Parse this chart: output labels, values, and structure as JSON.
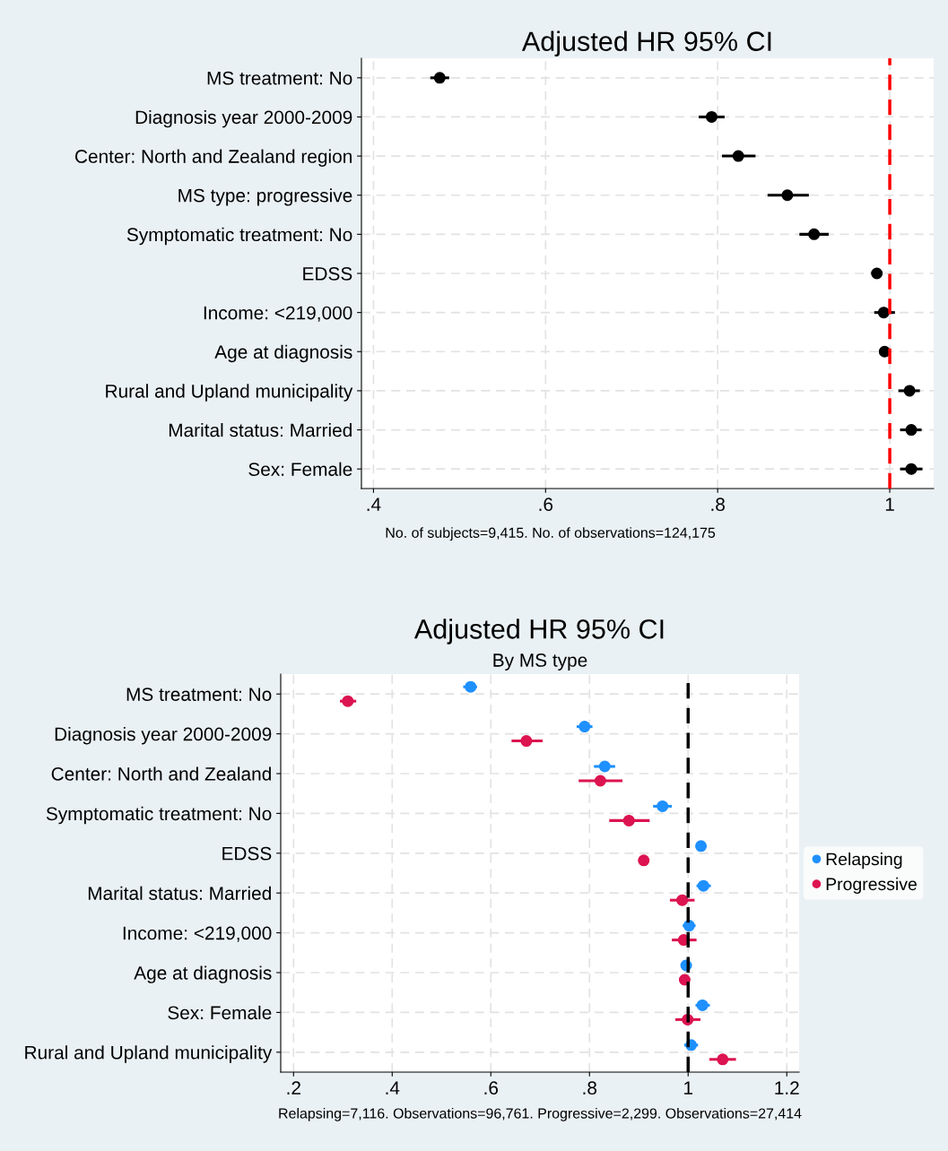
{
  "chart_data": [
    {
      "type": "scatter",
      "orientation": "horizontal",
      "title": "Adjusted HR 95% CI",
      "categories": [
        "MS treatment: No",
        "Diagnosis year 2000-2009",
        "Center: North and Zealand region",
        "MS type: progressive",
        "Symptomatic treatment: No",
        "EDSS",
        "Income: <219,000",
        "Age at diagnosis",
        "Rural and Upland municipality",
        "Marital status: Married",
        "Sex: Female"
      ],
      "series": [
        {
          "color": "#000000",
          "values": [
            0.477,
            0.793,
            0.824,
            0.881,
            0.912,
            0.985,
            0.993,
            0.994,
            1.023,
            1.025,
            1.025
          ],
          "errors": [
            [
              0.466,
              0.488
            ],
            [
              0.778,
              0.808
            ],
            [
              0.805,
              0.844
            ],
            [
              0.858,
              0.906
            ],
            [
              0.895,
              0.929
            ],
            [
              0.981,
              0.99
            ],
            [
              0.982,
              1.006
            ],
            [
              0.991,
              0.997
            ],
            [
              1.01,
              1.035
            ],
            [
              1.012,
              1.037
            ],
            [
              1.012,
              1.038
            ]
          ]
        }
      ],
      "xlim": [
        0.386,
        1.051
      ],
      "xticks": [
        {
          "value": 0.4,
          "label": ".4"
        },
        {
          "value": 0.6,
          "label": ".6"
        },
        {
          "value": 0.8,
          "label": ".8"
        },
        {
          "value": 1,
          "label": "1"
        }
      ],
      "ref_lines": [
        {
          "axis": "x",
          "value": 1,
          "color": "#ff0000",
          "line_style": "dashed"
        }
      ],
      "grid": true,
      "marker": "circle",
      "legend": false,
      "annotations": [
        "No. of subjects=9,415. No. of observations=124,175"
      ]
    },
    {
      "type": "scatter",
      "orientation": "horizontal",
      "title": "Adjusted HR 95% CI",
      "subtitle": "By MS type",
      "categories": [
        "MS treatment: No",
        "Diagnosis year 2000-2009",
        "Center: North and Zealand",
        "Symptomatic treatment: No",
        "EDSS",
        "Marital status: Married",
        "Income: <219,000",
        "Age at diagnosis",
        "Sex: Female",
        "Rural and Upland municipality"
      ],
      "series": [
        {
          "name": "Relapsing",
          "color": "#1e90ff",
          "values": [
            0.559,
            0.79,
            0.831,
            0.948,
            1.026,
            1.031,
            1.002,
            0.996,
            1.029,
            1.006
          ],
          "errors": [
            [
              0.544,
              0.572
            ],
            [
              0.774,
              0.806
            ],
            [
              0.809,
              0.852
            ],
            [
              0.929,
              0.967
            ],
            [
              1.023,
              1.029
            ],
            [
              1.017,
              1.046
            ],
            [
              0.989,
              1.015
            ],
            [
              0.994,
              0.998
            ],
            [
              1.015,
              1.044
            ],
            [
              0.992,
              1.02
            ]
          ]
        },
        {
          "name": "Progressive",
          "color": "#dc1450",
          "values": [
            0.31,
            0.672,
            0.822,
            0.88,
            0.91,
            0.988,
            0.991,
            0.993,
            0.999,
            1.07
          ],
          "errors": [
            [
              0.294,
              0.327
            ],
            [
              0.642,
              0.705
            ],
            [
              0.778,
              0.867
            ],
            [
              0.84,
              0.922
            ],
            [
              0.899,
              0.921
            ],
            [
              0.963,
              1.013
            ],
            [
              0.967,
              1.017
            ],
            [
              0.991,
              0.995
            ],
            [
              0.974,
              1.025
            ],
            [
              1.043,
              1.097
            ]
          ]
        }
      ],
      "xlim": [
        0.174,
        1.225
      ],
      "xticks": [
        {
          "value": 0.2,
          "label": ".2"
        },
        {
          "value": 0.4,
          "label": ".4"
        },
        {
          "value": 0.6,
          "label": ".6"
        },
        {
          "value": 0.8,
          "label": ".8"
        },
        {
          "value": 1,
          "label": "1"
        },
        {
          "value": 1.2,
          "label": "1.2"
        }
      ],
      "ref_lines": [
        {
          "axis": "x",
          "value": 1,
          "color": "#000000",
          "line_style": "dashed"
        }
      ],
      "grid": true,
      "marker": "circle",
      "legend": "right",
      "annotations": [
        "Relapsing=7,116. Observations=96,761. Progressive=2,299. Observations=27,414"
      ]
    }
  ]
}
